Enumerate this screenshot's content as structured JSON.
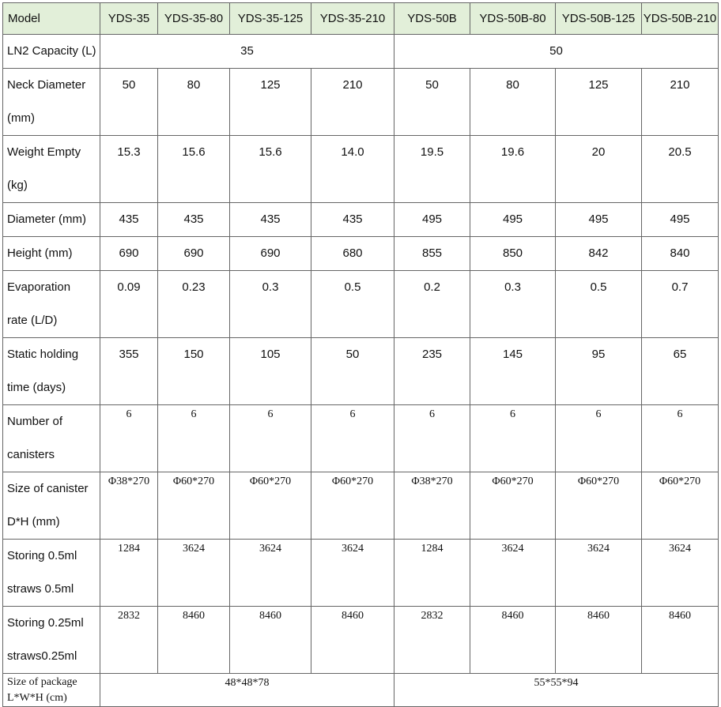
{
  "table": {
    "header": [
      "Model",
      "YDS-35",
      "YDS-35-80",
      "YDS-35-125",
      "YDS-35-210",
      "YDS-50B",
      "YDS-50B-80",
      "YDS-50B-125",
      "YDS-50B-210"
    ],
    "rows": [
      {
        "label": [
          "LN2 Capacity (L)"
        ],
        "values": [
          "35",
          "50"
        ]
      },
      {
        "label": [
          "Neck Diameter",
          "(mm)"
        ],
        "values": [
          "50",
          "80",
          "125",
          "210",
          "50",
          "80",
          "125",
          "210"
        ]
      },
      {
        "label": [
          "Weight Empty",
          "(kg)"
        ],
        "values": [
          "15.3",
          "15.6",
          "15.6",
          "14.0",
          "19.5",
          "19.6",
          "20",
          "20.5"
        ]
      },
      {
        "label": [
          "Diameter (mm)"
        ],
        "values": [
          "435",
          "435",
          "435",
          "435",
          "495",
          "495",
          "495",
          "495"
        ]
      },
      {
        "label": [
          "Height (mm)"
        ],
        "values": [
          "690",
          "690",
          "690",
          "680",
          "855",
          "850",
          "842",
          "840"
        ]
      },
      {
        "label": [
          "Evaporation",
          "rate (L/D)"
        ],
        "values": [
          "0.09",
          "0.23",
          "0.3",
          "0.5",
          "0.2",
          "0.3",
          "0.5",
          "0.7"
        ]
      },
      {
        "label": [
          "Static holding",
          "time (days)"
        ],
        "values": [
          "355",
          "150",
          "105",
          "50",
          "235",
          "145",
          "95",
          "65"
        ]
      },
      {
        "label": [
          "Number of",
          "canisters"
        ],
        "values": [
          "6",
          "6",
          "6",
          "6",
          "6",
          "6",
          "6",
          "6"
        ]
      },
      {
        "label": [
          "Size of canister",
          "D*H (mm)"
        ],
        "values": [
          "Φ38*270",
          "Φ60*270",
          "Φ60*270",
          "Φ60*270",
          "Φ38*270",
          "Φ60*270",
          "Φ60*270",
          "Φ60*270"
        ]
      },
      {
        "label": [
          "Storing 0.5ml",
          "straws 0.5ml"
        ],
        "values": [
          "1284",
          "3624",
          "3624",
          "3624",
          "1284",
          "3624",
          "3624",
          "3624"
        ]
      },
      {
        "label": [
          "Storing 0.25ml",
          "straws0.25ml"
        ],
        "values": [
          "2832",
          "8460",
          "8460",
          "8460",
          "2832",
          "8460",
          "8460",
          "8460"
        ]
      },
      {
        "label": [
          "Size of package",
          "L*W*H (cm)"
        ],
        "values": [
          "48*48*78",
          "55*55*94"
        ]
      }
    ]
  }
}
